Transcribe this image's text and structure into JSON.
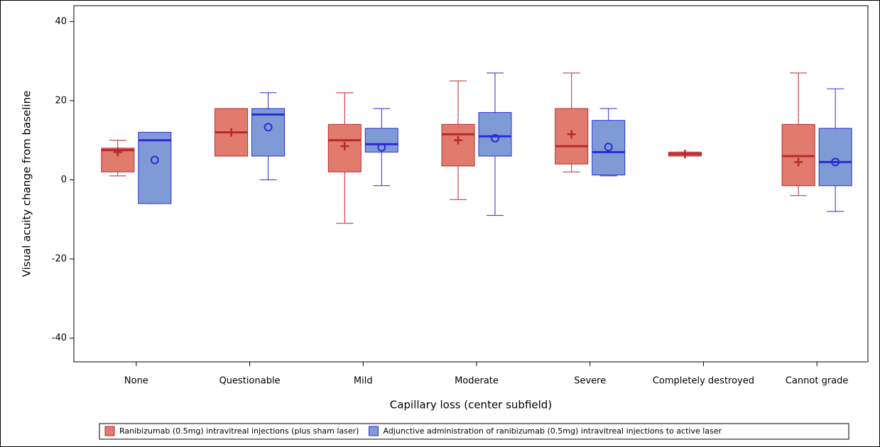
{
  "chart_data": {
    "type": "boxplot",
    "xlabel": "Capillary loss (center subfield)",
    "ylabel": "Visual acuity change from baseline",
    "categories": [
      "None",
      "Questionable",
      "Mild",
      "Moderate",
      "Severe",
      "Completely destroyed",
      "Cannot grade"
    ],
    "ylim": [
      -46,
      44
    ],
    "yticks": [
      -40,
      -20,
      0,
      20,
      40
    ],
    "legend": "bottom",
    "series": [
      {
        "name": "Ranibizumab (0.5mg) intravitreal injections (plus sham laser)",
        "color": "#e07b6e",
        "edge": "#b8282c",
        "marker": "plus",
        "min": [
          1,
          6,
          -11,
          -5,
          2,
          6,
          -4
        ],
        "q1": [
          2,
          6,
          2,
          3.5,
          4,
          6,
          -1.5
        ],
        "median": [
          7.5,
          12,
          10,
          11.5,
          8.5,
          6.5,
          6
        ],
        "q3": [
          8,
          18,
          14,
          14,
          18,
          7,
          14
        ],
        "max": [
          10,
          18,
          22,
          25,
          27,
          7,
          27
        ],
        "mean": [
          7,
          12,
          8.5,
          10,
          11.5,
          6.5,
          4.5
        ]
      },
      {
        "name": "Adjunctive administration of ranibizumab (0.5mg) intravitreal injections to active laser",
        "color": "#7f9bd6",
        "edge": "#2b2bd0",
        "marker": "circle",
        "min": [
          -6,
          0,
          -1.5,
          -9,
          1,
          null,
          -8
        ],
        "q1": [
          -6,
          6,
          7,
          6,
          1.2,
          null,
          -1.5
        ],
        "median": [
          10,
          16.5,
          9,
          11,
          7,
          null,
          4.5
        ],
        "q3": [
          12,
          18,
          13,
          17,
          15,
          null,
          13
        ],
        "max": [
          12,
          22,
          18,
          27,
          18,
          null,
          23
        ],
        "mean": [
          5,
          13.3,
          8.2,
          10.5,
          8.3,
          null,
          4.5
        ]
      }
    ]
  }
}
